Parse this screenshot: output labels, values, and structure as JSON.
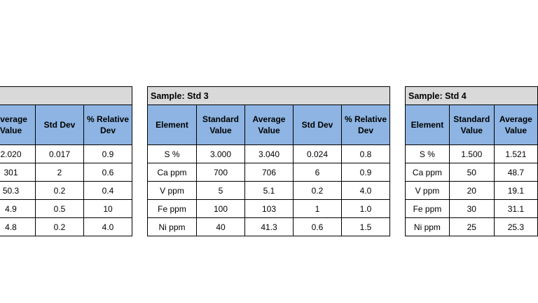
{
  "tables": [
    {
      "title": "",
      "headers": [
        "Average Value",
        "Std Dev",
        "% Relative Dev"
      ],
      "rows": [
        [
          "2.020",
          "0.017",
          "0.9"
        ],
        [
          "301",
          "2",
          "0.6"
        ],
        [
          "50.3",
          "0.2",
          "0.4"
        ],
        [
          "4.9",
          "0.5",
          "10"
        ],
        [
          "4.8",
          "0.2",
          "4.0"
        ]
      ]
    },
    {
      "title": "Sample:  Std 3",
      "headers": [
        "Element",
        "Standard Value",
        "Average Value",
        "Std Dev",
        "% Relative Dev"
      ],
      "rows": [
        [
          "S %",
          "3.000",
          "3.040",
          "0.024",
          "0.8"
        ],
        [
          "Ca ppm",
          "700",
          "706",
          "6",
          "0.9"
        ],
        [
          "V ppm",
          "5",
          "5.1",
          "0.2",
          "4.0"
        ],
        [
          "Fe ppm",
          "100",
          "103",
          "1",
          "1.0"
        ],
        [
          "Ni ppm",
          "40",
          "41.3",
          "0.6",
          "1.5"
        ]
      ]
    },
    {
      "title": "Sample:  Std 4",
      "headers": [
        "Element",
        "Standard Value",
        "Average Value"
      ],
      "rows": [
        [
          "S %",
          "1.500",
          "1.521"
        ],
        [
          "Ca ppm",
          "50",
          "48.7"
        ],
        [
          "V ppm",
          "20",
          "19.1"
        ],
        [
          "Fe ppm",
          "30",
          "31.1"
        ],
        [
          "Ni ppm",
          "25",
          "25.3"
        ]
      ]
    }
  ]
}
